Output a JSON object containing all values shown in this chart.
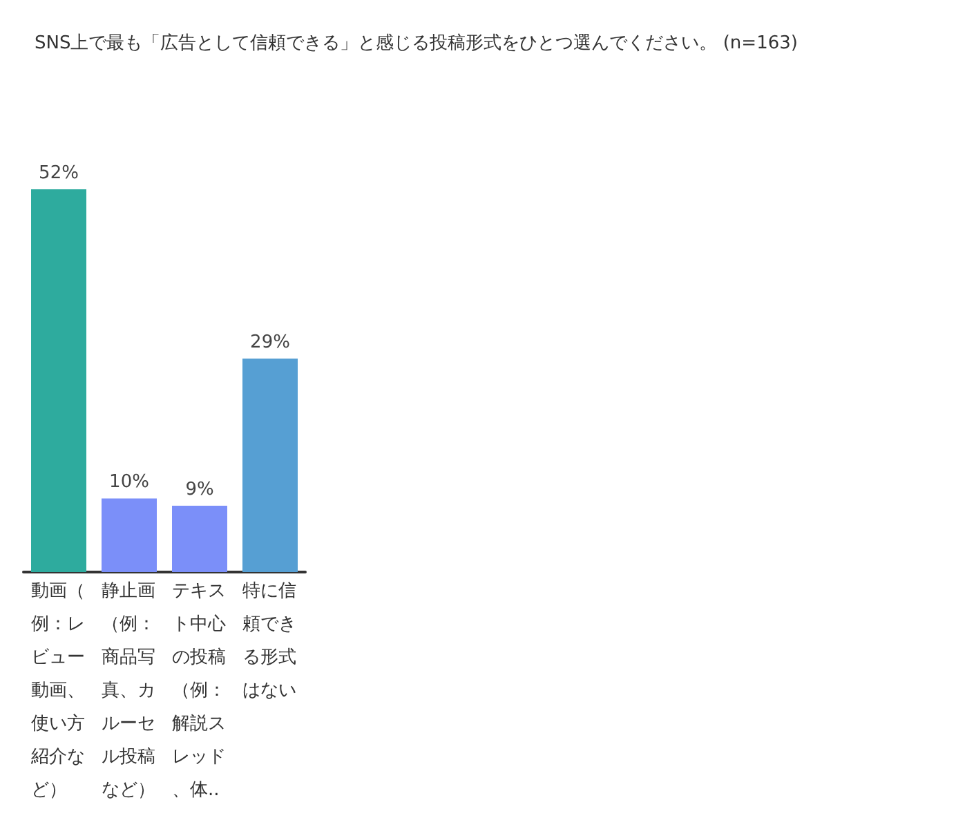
{
  "chart_data": {
    "type": "bar",
    "title": "SNS上で最も「広告として信頼できる」と感じる投稿形式をひとつ選んでください。 (n=163)",
    "categories": [
      "動画（例：レビュー動画、使い方紹介など）",
      "静止画（例：商品写真、カルーセル投稿など）",
      "テキスト中心の投稿（例：解説スレッド、体..",
      "特に信頼できる形式はない"
    ],
    "values": [
      52,
      10,
      9,
      29
    ],
    "colors": [
      "#2eab9e",
      "#7b8ff9",
      "#7b8ff9",
      "#569fd3"
    ],
    "value_labels": [
      "52%",
      "10%",
      "9%",
      "29%"
    ],
    "grid": false
  }
}
